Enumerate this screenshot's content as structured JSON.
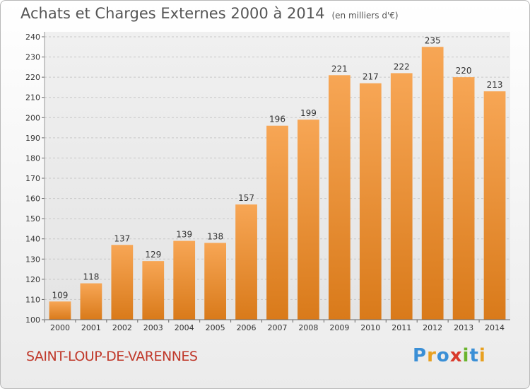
{
  "header": {
    "title": "Achats et Charges Externes 2000 à 2014",
    "subtitle": "(en milliers d'€)"
  },
  "footer": {
    "town": "SAINT-LOUP-DE-VARENNES",
    "logo_letters": [
      "P",
      "r",
      "o",
      "x",
      "i",
      "t",
      "i"
    ],
    "logo_colors": [
      "#3a8fd6",
      "#e8a020",
      "#3a8fd6",
      "#d93a2b",
      "#6ab42d",
      "#3a8fd6",
      "#e8a020"
    ]
  },
  "chart_data": {
    "type": "bar",
    "categories": [
      "2000",
      "2001",
      "2002",
      "2003",
      "2004",
      "2005",
      "2006",
      "2007",
      "2008",
      "2009",
      "2010",
      "2011",
      "2012",
      "2013",
      "2014"
    ],
    "values": [
      109,
      118,
      137,
      129,
      139,
      138,
      157,
      196,
      199,
      221,
      217,
      222,
      235,
      220,
      213
    ],
    "title": "Achats et Charges Externes 2000 à 2014",
    "xlabel": "",
    "ylabel": "",
    "ylim": [
      100,
      240
    ],
    "yticks": [
      100,
      110,
      120,
      130,
      140,
      150,
      160,
      170,
      180,
      190,
      200,
      210,
      220,
      230,
      240
    ],
    "grid": true,
    "bar_color": "#f0922e"
  }
}
